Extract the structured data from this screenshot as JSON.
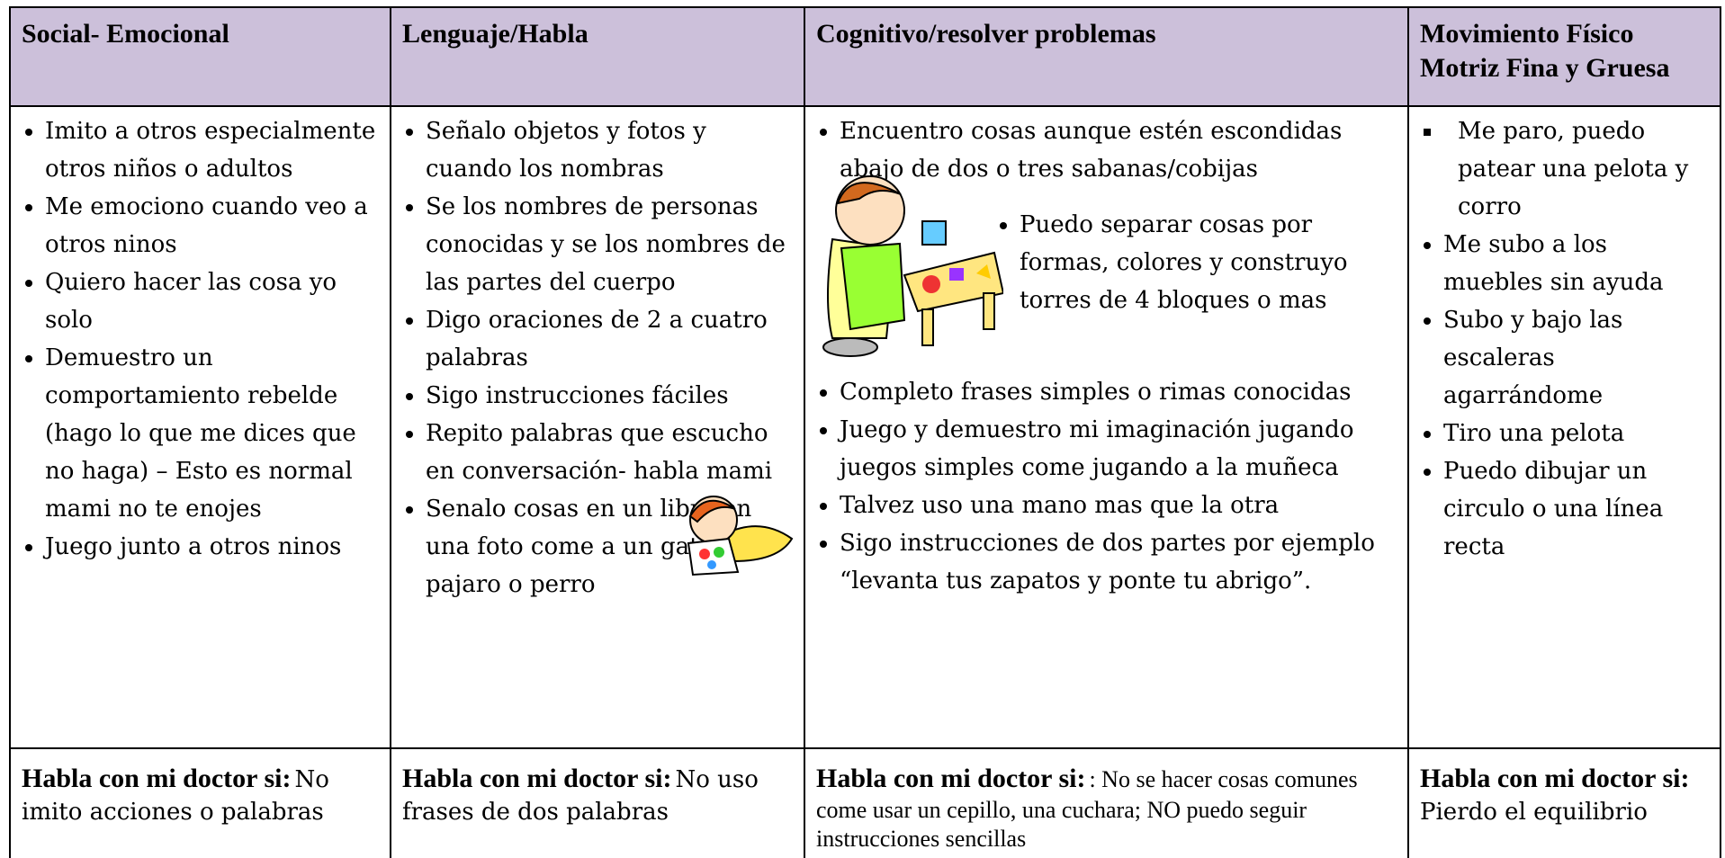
{
  "header": {
    "cells": [
      "Social- Emocional",
      "Lenguaje/Habla",
      "Cognitivo/resolver problemas",
      "Movimiento Físico Motriz Fina y Gruesa"
    ]
  },
  "body": {
    "columns": [
      {
        "items": [
          "Imito a otros especialmente otros niños o adultos",
          "Me emociono cuando veo a otros ninos",
          "Quiero hacer las cosa yo solo",
          "Demuestro un comportamiento rebelde (hago lo que me dices que no haga) – Esto es normal mami no te enojes",
          "Juego junto a otros ninos"
        ]
      },
      {
        "items": [
          "Señalo objetos y fotos y cuando los nombras",
          "Se los nombres de personas conocidas y se los nombres de las partes del cuerpo",
          "Digo oraciones de 2 a cuatro palabras",
          "Sigo instrucciones fáciles",
          "Repito palabras que escucho en conversación- habla mami",
          "Senalo cosas en un libro en una foto come a un gato, pajaro o perro"
        ]
      },
      {
        "items": [
          "Encuentro cosas aunque estén escondidas abajo de dos o tres sabanas/cobijas",
          "Puedo separar cosas por formas, colores y construyo torres de 4 bloques o mas",
          "Completo frases simples o rimas conocidas",
          "Juego y demuestro mi imaginación jugando juegos simples come jugando a la muñeca",
          "Talvez uso una mano mas que la otra",
          "Sigo instrucciones de dos partes por ejemplo “levanta tus zapatos y ponte tu abrigo”."
        ]
      },
      {
        "items": [
          "Me paro, puedo patear una pelota y corro",
          "Me subo a los muebles sin ayuda",
          "Subo y bajo las escaleras agarrándome",
          "Tiro una pelota",
          "Puedo dibujar un circulo o una línea recta"
        ]
      }
    ]
  },
  "footer": {
    "cells": [
      {
        "label": "Habla con mi doctor si:",
        "text": "No imito acciones o palabras"
      },
      {
        "label": "Habla con mi doctor si:",
        "text": "No uso frases de dos palabras"
      },
      {
        "label": "Habla con mi doctor si:",
        "text": ": No se hacer cosas comunes come usar un cepillo, una cuchara; NO puedo seguir instrucciones sencillas"
      },
      {
        "label": "Habla con mi doctor si:",
        "text": "Pierdo el equilibrio"
      }
    ]
  }
}
